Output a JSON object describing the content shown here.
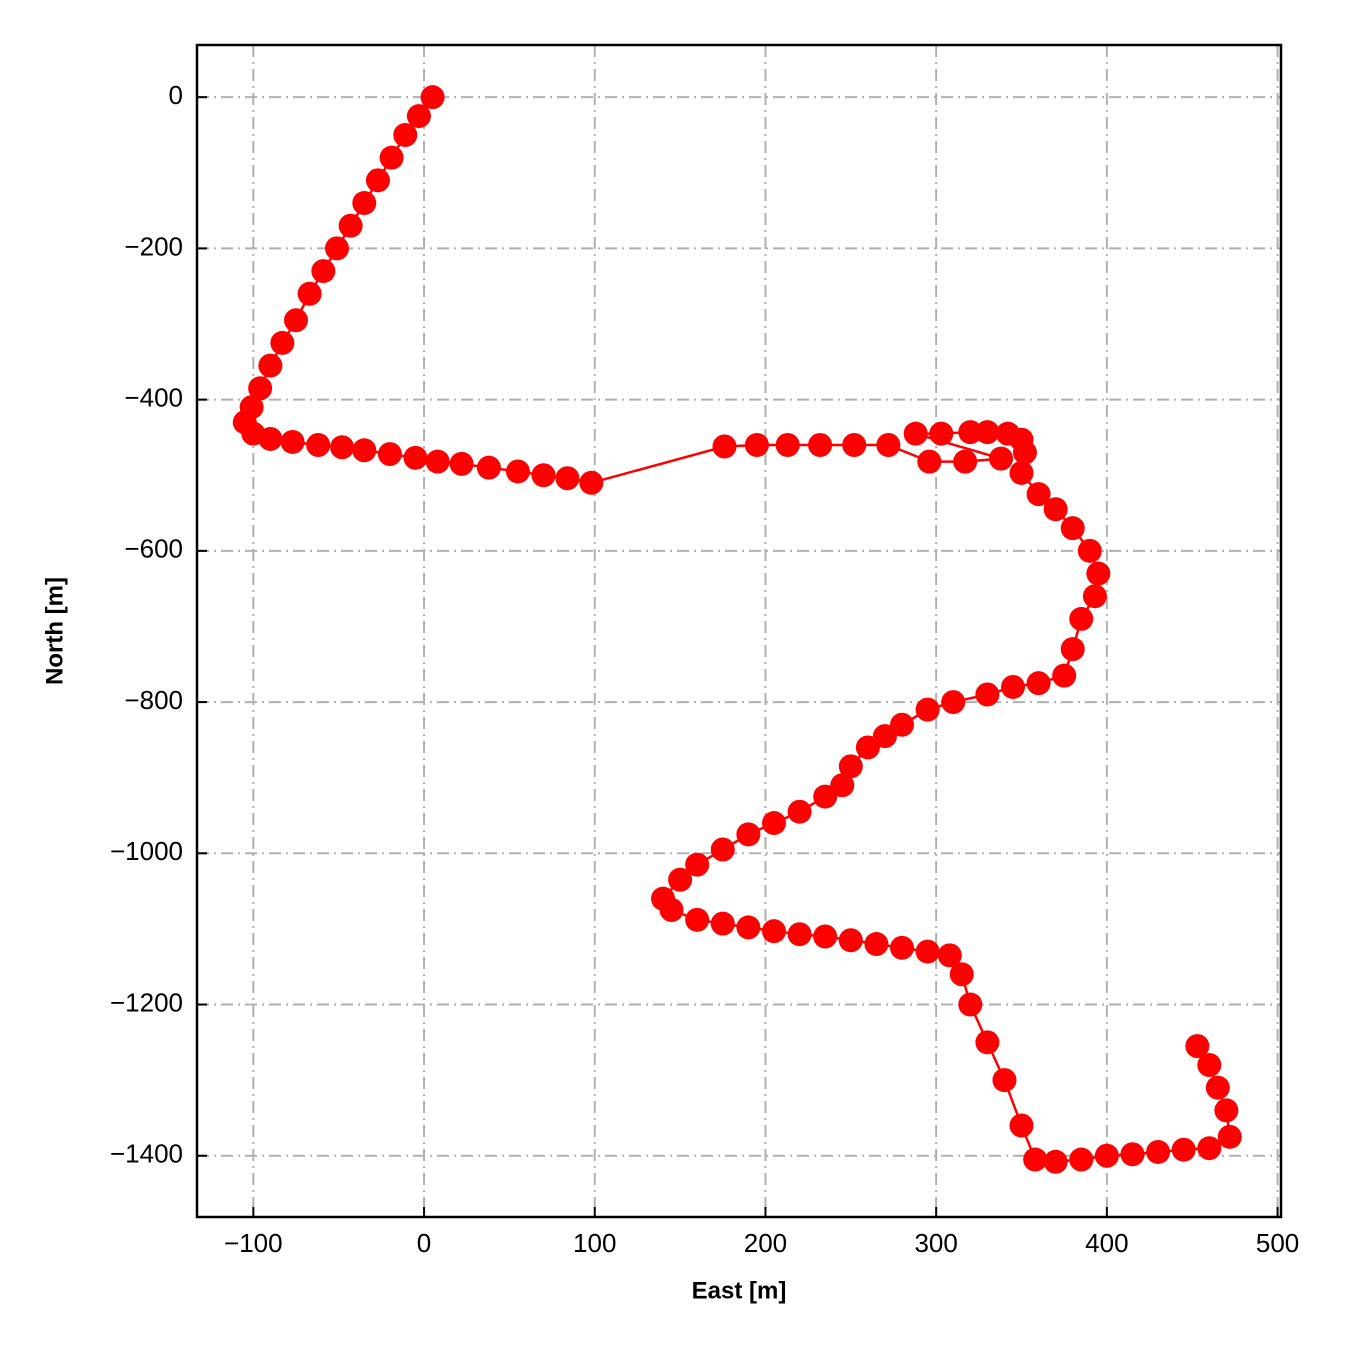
{
  "chart_data": {
    "type": "line",
    "color": "#ff0000",
    "grid": true,
    "xlabel": "East [m]",
    "ylabel": "North [m]",
    "xlim": [
      -133,
      502
    ],
    "ylim": [
      -1481,
      69
    ],
    "xticks": [
      {
        "value": -100,
        "label": "−100"
      },
      0,
      100,
      200,
      300,
      400,
      500
    ],
    "yticks": [
      0,
      {
        "value": -200,
        "label": "−200"
      },
      {
        "value": -400,
        "label": "−400"
      },
      {
        "value": -600,
        "label": "−600"
      },
      {
        "value": -800,
        "label": "−800"
      },
      {
        "value": -1000,
        "label": "−1000"
      },
      {
        "value": -1200,
        "label": "−1200"
      },
      {
        "value": -1400,
        "label": "−1400"
      }
    ],
    "x": [
      5,
      -3,
      -11,
      -19,
      -27,
      -35,
      -43,
      -51,
      -59,
      -67,
      -75,
      -83,
      -90,
      -96,
      -101,
      -105,
      -100,
      -90,
      -77,
      -62,
      -48,
      -35,
      -20,
      -5,
      8,
      22,
      38,
      55,
      70,
      84,
      98,
      176,
      195,
      213,
      232,
      252,
      272,
      296,
      317,
      338,
      288,
      303,
      320,
      330,
      342,
      350,
      352,
      350,
      360,
      370,
      380,
      390,
      395,
      393,
      385,
      380,
      375,
      360,
      345,
      330,
      310,
      295,
      280,
      270,
      260,
      250,
      245,
      235,
      220,
      205,
      190,
      175,
      160,
      150,
      140,
      145,
      160,
      175,
      190,
      205,
      220,
      235,
      250,
      265,
      280,
      295,
      308,
      315,
      320,
      330,
      340,
      350,
      358,
      370,
      385,
      400,
      415,
      430,
      445,
      460,
      472,
      470,
      465,
      460,
      453
    ],
    "values": [
      0,
      -25,
      -50,
      -80,
      -110,
      -140,
      -170,
      -200,
      -230,
      -260,
      -295,
      -325,
      -355,
      -385,
      -410,
      -430,
      -445,
      -452,
      -456,
      -460,
      -463,
      -467,
      -472,
      -477,
      -482,
      -485,
      -490,
      -495,
      -500,
      -504,
      -510,
      -462,
      -460,
      -460,
      -460,
      -460,
      -460,
      -482,
      -482,
      -478,
      -445,
      -445,
      -443,
      -443,
      -445,
      -453,
      -470,
      -497,
      -525,
      -545,
      -570,
      -600,
      -630,
      -660,
      -690,
      -730,
      -765,
      -775,
      -780,
      -790,
      -800,
      -810,
      -830,
      -845,
      -860,
      -885,
      -910,
      -925,
      -945,
      -960,
      -975,
      -995,
      -1015,
      -1035,
      -1060,
      -1075,
      -1088,
      -1093,
      -1098,
      -1103,
      -1107,
      -1110,
      -1115,
      -1120,
      -1125,
      -1130,
      -1135,
      -1160,
      -1200,
      -1250,
      -1300,
      -1360,
      -1405,
      -1408,
      -1405,
      -1400,
      -1398,
      -1395,
      -1392,
      -1390,
      -1375,
      -1340,
      -1310,
      -1280,
      -1255
    ]
  }
}
